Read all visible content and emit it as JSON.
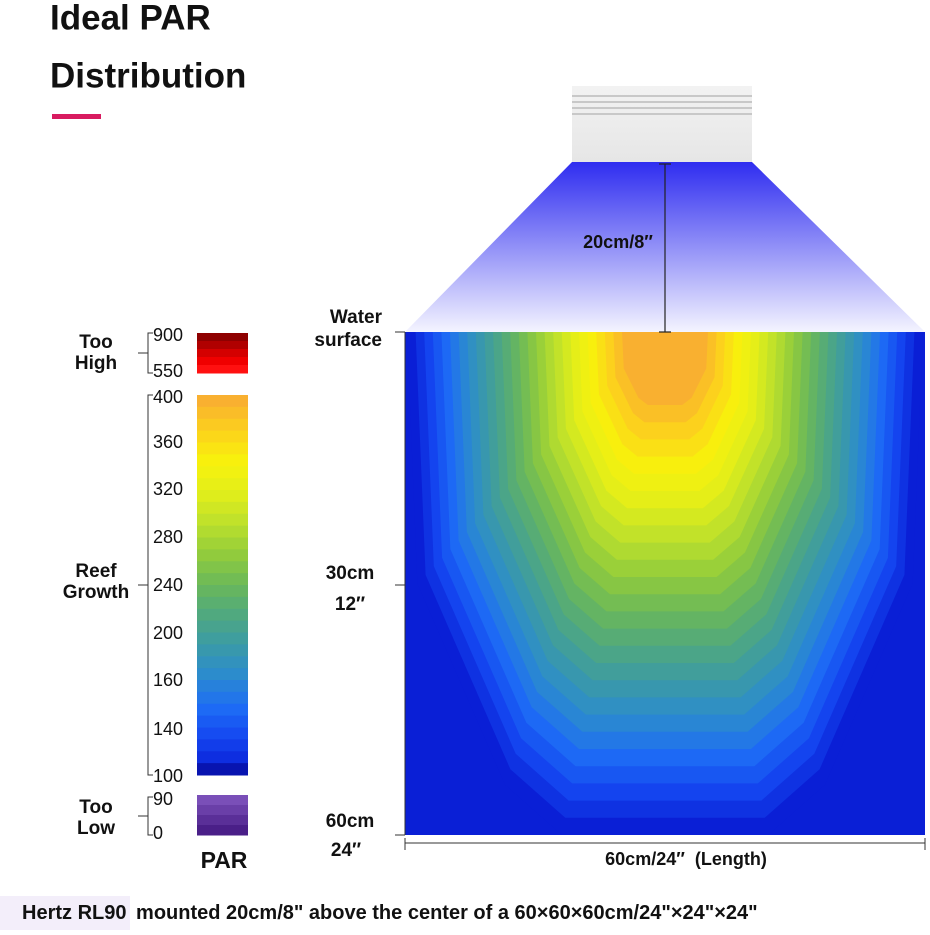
{
  "header": {
    "title_lines": [
      "Ideal PAR",
      "Distribution"
    ]
  },
  "legend": {
    "too_high": {
      "label_lines": [
        "Too",
        "High"
      ],
      "ticks": [
        900,
        550
      ]
    },
    "reef_growth": {
      "label_lines": [
        "Reef",
        "Growth"
      ],
      "ticks": [
        400,
        360,
        320,
        280,
        240,
        200,
        160,
        140,
        100
      ]
    },
    "too_low": {
      "label_lines": [
        "Too",
        "Low"
      ],
      "ticks": [
        90,
        0
      ]
    },
    "unit": "PAR"
  },
  "diagram": {
    "mount_height": "20cm/8″",
    "water_surface_lines": [
      "Water",
      "surface"
    ],
    "mid_depth_lines": [
      "30cm",
      "12″"
    ],
    "bottom_depth_lines": [
      "60cm",
      "24″"
    ],
    "length": "60cm/24″  (Length)"
  },
  "footer": {
    "product": "Hertz RL90",
    "description": "mounted 20cm/8\" above the center of a 60×60×60cm/24\"×24\"×24\""
  }
}
